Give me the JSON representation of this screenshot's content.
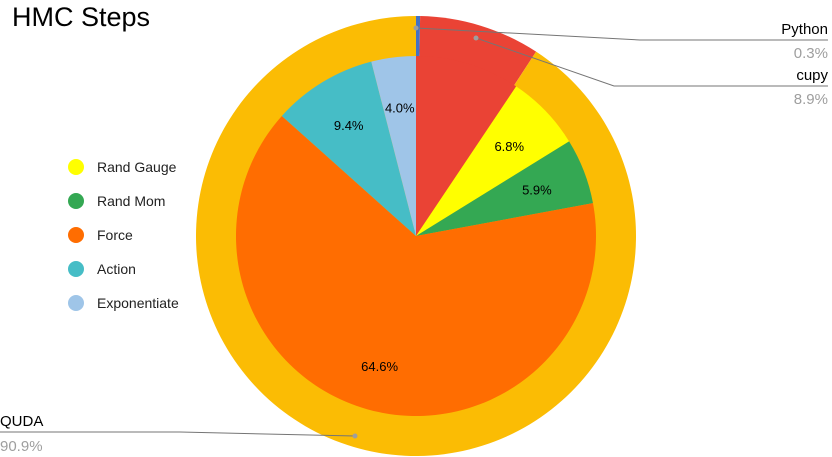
{
  "chart_data": {
    "type": "pie",
    "title": "HMC Steps",
    "outer_ring": {
      "slices": [
        {
          "name": "Python",
          "value": 0.3,
          "label": "0.3%",
          "color": "#4472c4"
        },
        {
          "name": "cupy",
          "value": 8.9,
          "label": "8.9%",
          "color": "#ea4335"
        },
        {
          "name": "QUDA",
          "value": 90.9,
          "label": "90.9%",
          "color": "#fbbc04"
        }
      ]
    },
    "inner_pie": {
      "slices": [
        {
          "name": "",
          "value": 9.4,
          "label": "",
          "color": "#ea4335"
        },
        {
          "name": "Rand Gauge",
          "value": 6.8,
          "label": "6.8%",
          "color": "#ffff00"
        },
        {
          "name": "Rand Mom",
          "value": 5.9,
          "label": "5.9%",
          "color": "#34a853"
        },
        {
          "name": "Force",
          "value": 64.6,
          "label": "64.6%",
          "color": "#ff6d01"
        },
        {
          "name": "Action",
          "value": 9.4,
          "label": "9.4%",
          "color": "#46bdc6"
        },
        {
          "name": "Exponentiate",
          "value": 4.0,
          "label": "4.0%",
          "color": "#9fc5e8"
        }
      ]
    },
    "legend": {
      "position": "left",
      "entries": [
        {
          "label": "Rand Gauge",
          "color": "#ffff00"
        },
        {
          "label": "Rand Mom",
          "color": "#34a853"
        },
        {
          "label": "Force",
          "color": "#ff6d01"
        },
        {
          "label": "Action",
          "color": "#46bdc6"
        },
        {
          "label": "Exponentiate",
          "color": "#9fc5e8"
        }
      ]
    }
  }
}
